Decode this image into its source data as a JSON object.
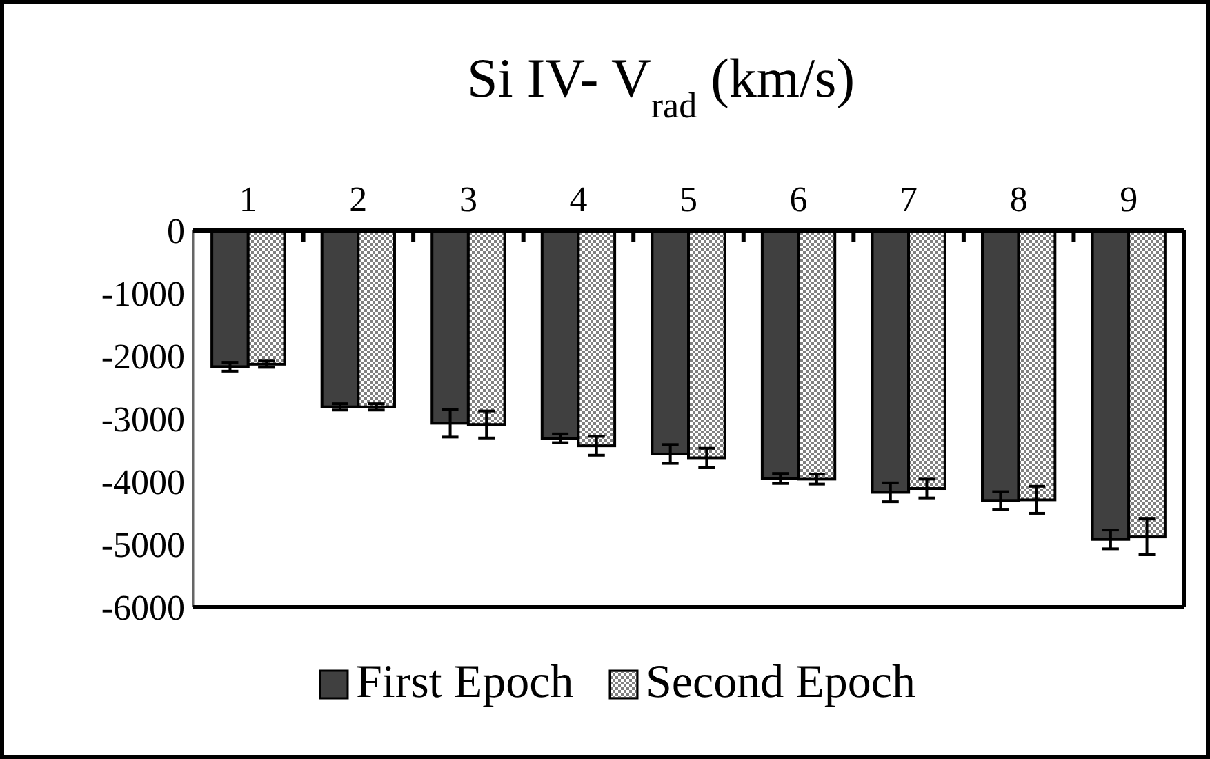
{
  "chart_data": {
    "type": "bar",
    "title": "Si IV- V$_{rad}$ (km/s)",
    "categories": [
      "1",
      "2",
      "3",
      "4",
      "5",
      "6",
      "7",
      "8",
      "9"
    ],
    "series": [
      {
        "name": "First Epoch",
        "color": "#404040",
        "values": [
          -2170,
          -2810,
          -3070,
          -3310,
          -3560,
          -3950,
          -4170,
          -4300,
          -4920
        ],
        "errors": [
          70,
          50,
          220,
          70,
          150,
          80,
          150,
          140,
          150
        ]
      },
      {
        "name": "Second Epoch",
        "color": "#808080",
        "values": [
          -2130,
          -2810,
          -3090,
          -3430,
          -3620,
          -3960,
          -4110,
          -4290,
          -4880
        ],
        "errors": [
          50,
          50,
          215,
          150,
          150,
          80,
          150,
          215,
          285
        ]
      }
    ],
    "ylim": [
      -6000,
      0
    ],
    "yticks": [
      0,
      -1000,
      -2000,
      -3000,
      -4000,
      -5000,
      -6000
    ],
    "grid": false,
    "legend": "bottom"
  }
}
